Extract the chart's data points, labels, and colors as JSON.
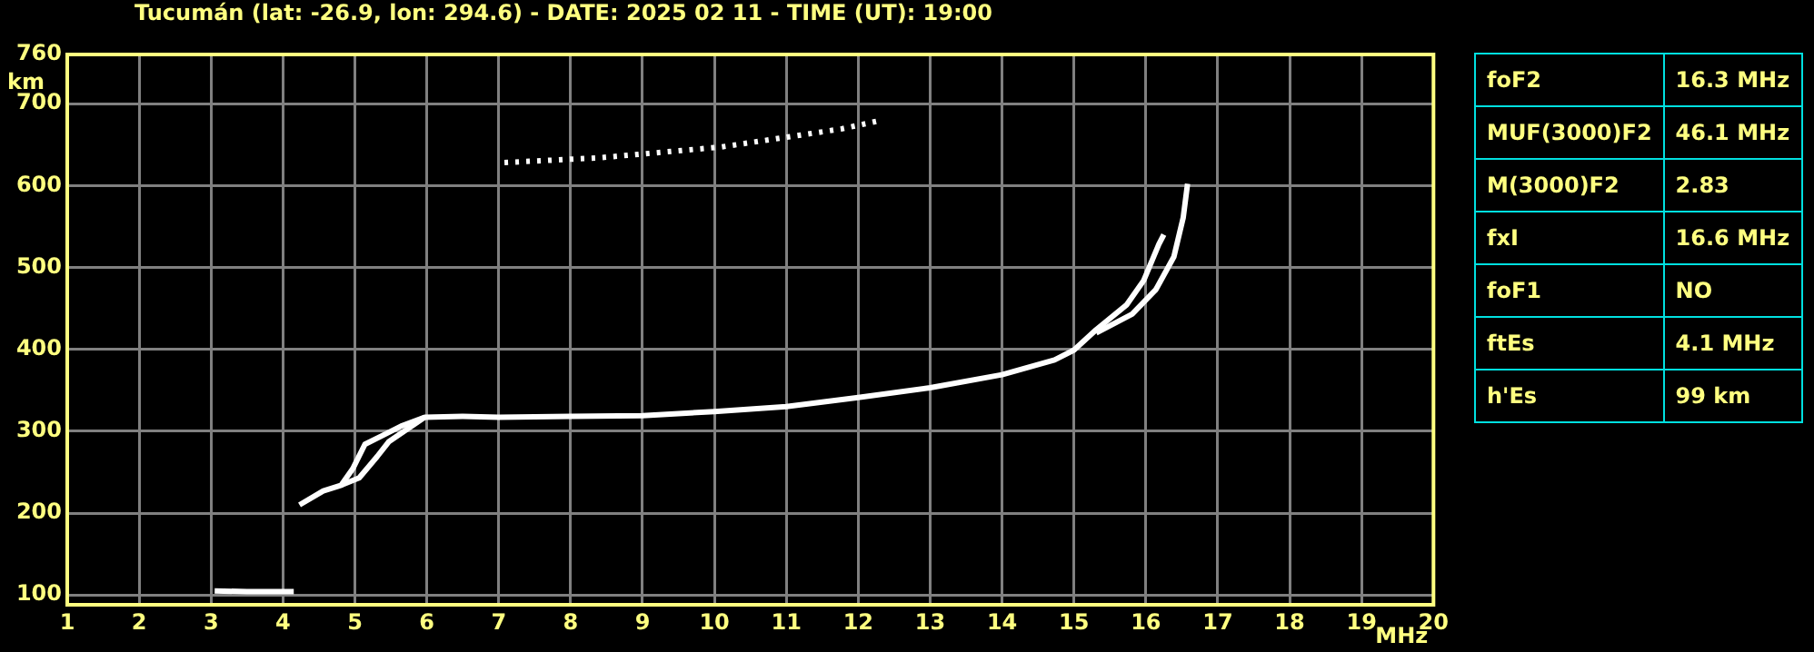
{
  "chart_data": {
    "type": "line",
    "title": "Tucumán (lat: -26.9, lon: 294.6) - DATE: 2025 02 11 - TIME (UT): 19:00",
    "xlabel": "MHz",
    "ylabel": "km",
    "series": [
      {
        "color": "#ffffff",
        "x": [
          3.05,
          3.5,
          4.15
        ],
        "values": [
          105,
          104,
          104
        ]
      },
      {
        "color": "#ffffff",
        "x": [
          4.23,
          4.56,
          4.81,
          4.97,
          5.14,
          5.39,
          5.64,
          5.97,
          6.5,
          7,
          8,
          9,
          10,
          11,
          12,
          13,
          14,
          14.73,
          15,
          15.31,
          15.73,
          15.97,
          16.18,
          16.25
        ],
        "values": [
          210,
          227,
          234,
          254,
          284,
          295,
          306,
          317,
          318,
          317,
          318,
          319,
          324,
          330,
          341,
          353,
          369,
          387,
          399,
          424,
          454,
          484,
          528,
          540
        ]
      },
      {
        "color": "#ffffff",
        "x": [
          4.81,
          5.06,
          5.31,
          5.47,
          5.72,
          5.97,
          10,
          15.31,
          15.81,
          16.14,
          16.39,
          16.52,
          16.58
        ],
        "values": [
          234,
          243,
          269,
          287,
          302,
          317,
          null,
          420,
          443,
          473,
          513,
          561,
          602
        ]
      },
      {
        "color": "#ffffff",
        "line_style": "dotted",
        "x": [
          7.08,
          8.42,
          10.09,
          11.76,
          12.34
        ],
        "values": [
          628,
          634,
          647,
          669,
          680
        ]
      }
    ],
    "xlim": [
      1,
      20
    ],
    "xticks": [
      1,
      2,
      3,
      4,
      5,
      6,
      7,
      8,
      9,
      10,
      11,
      12,
      13,
      14,
      15,
      16,
      17,
      18,
      19,
      20
    ],
    "ylim": [
      88,
      760
    ],
    "yticks": [
      100,
      200,
      300,
      400,
      500,
      600,
      700,
      760
    ],
    "grid": true,
    "annotations": [
      "foF2",
      "16.3 MHz",
      "MUF(3000)F2",
      "46.1 MHz",
      "M(3000)F2",
      "2.83",
      "fxI",
      "16.6 MHz",
      "foF1",
      "NO",
      "ftEs",
      "4.1 MHz",
      "h'Es",
      "99 km"
    ]
  }
}
